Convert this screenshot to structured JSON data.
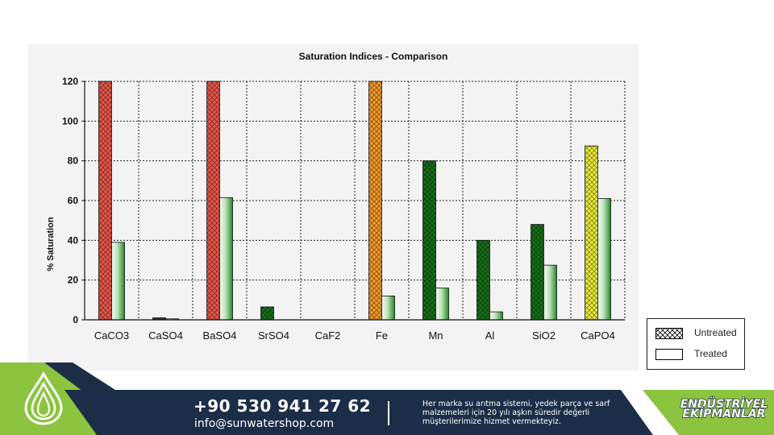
{
  "chart_data": {
    "type": "bar",
    "title": "Saturation Indices - Comparison",
    "xlabel": "",
    "ylabel": "% Saturation",
    "ylim": [
      0,
      120
    ],
    "yticks": [
      0,
      20,
      40,
      60,
      80,
      100,
      120
    ],
    "grid": true,
    "legend_position": "bottom-right",
    "categories": [
      "CaCO3",
      "CaSO4",
      "BaSO4",
      "SrSO4",
      "CaF2",
      "Fe",
      "Mn",
      "Al",
      "SiO2",
      "CaPO4"
    ],
    "series": [
      {
        "name": "Untreated",
        "values": [
          120,
          1,
          120,
          6.5,
          0,
          120,
          80,
          40,
          48,
          87.5
        ]
      },
      {
        "name": "Treated",
        "values": [
          39,
          0.5,
          61.5,
          0,
          0,
          12,
          16,
          4,
          27.5,
          61
        ]
      }
    ],
    "untreated_colors": [
      "#e8554a",
      "#3a3a3a",
      "#e8554a",
      "#17701a",
      "#17701a",
      "#f29a2a",
      "#17701a",
      "#17701a",
      "#17701a",
      "#eaea3a"
    ]
  },
  "footer": {
    "phone": "+90 530 941 27 62",
    "email": "info@sunwatershop.com",
    "tagline": "Her marka su arıtma sistemi, yedek parça ve sarf malzemeleri için 20 yılı aşkın süredir değerli müşterilerimize hizmet vermekteyiz.",
    "brand_line1": "ENDÜSTRİYEL",
    "brand_line2": "EKİPMANLAR",
    "navy_color": "#1c2e47",
    "green_color": "#8cc43f"
  }
}
